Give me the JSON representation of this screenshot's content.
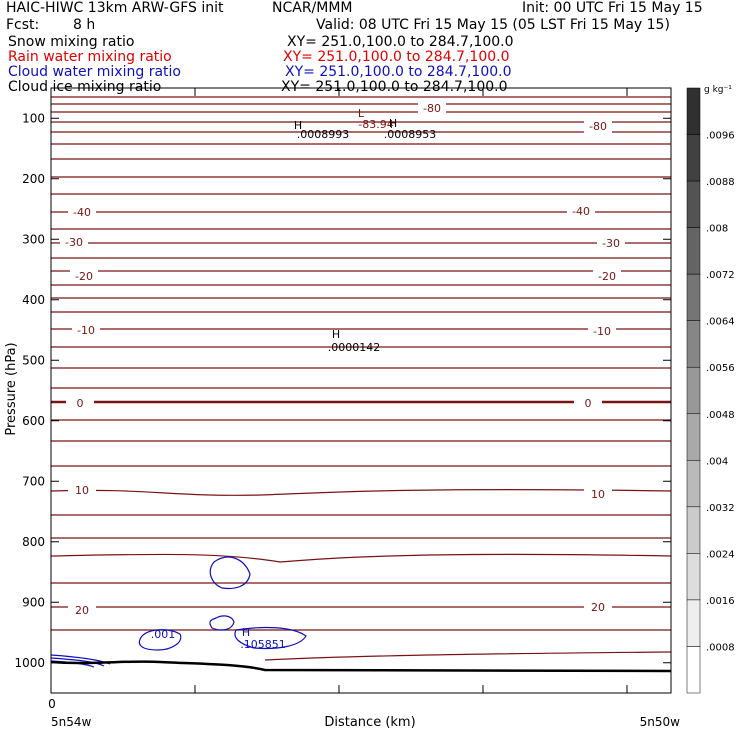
{
  "header": {
    "title": "HAIC-HIWC 13km ARW-GFS init",
    "org": "NCAR/MMM",
    "init": "Init: 00 UTC Fri 15 May 15",
    "fcst_label": "Fcst:",
    "fcst_value": "8 h",
    "valid": "Valid: 08 UTC Fri 15 May 15 (05 LST Fri 15 May 15)",
    "fields": [
      {
        "name": "Snow mixing ratio",
        "xy": "XY= 251.0,100.0 to 284.7,100.0",
        "color": "#000000"
      },
      {
        "name": "Rain water mixing ratio",
        "xy": "XY= 251.0,100.0 to 284.7,100.0",
        "color": "#e00000"
      },
      {
        "name": "Cloud water mixing ratio",
        "xy": "XY= 251.0,100.0 to 284.7,100.0",
        "color": "#1010c0"
      },
      {
        "name": "Cloud ice mixing ratio",
        "xy": "XY= 251.0,100.0 to 284.7,100.0",
        "color": "#000000"
      }
    ]
  },
  "chart_data": {
    "type": "contour",
    "xlabel": "Distance (km)",
    "ylabel": "Pressure (hPa)",
    "x_ticks": [
      "0"
    ],
    "x_end_labels": [
      "5n54w",
      "5n50w"
    ],
    "y_ticks": [
      100,
      200,
      300,
      400,
      500,
      600,
      700,
      800,
      900,
      1000
    ],
    "ylim": [
      1050,
      50
    ],
    "colorbar": {
      "unit": "g kg⁻¹",
      "labels": [
        ".0096",
        ".0088",
        ".008",
        ".0072",
        ".0064",
        ".0056",
        ".0048",
        ".004",
        ".0032",
        ".0024",
        ".0016",
        ".0008"
      ]
    },
    "temperature_labels": [
      "-80",
      "-80",
      "-40",
      "-40",
      "-30",
      "-30",
      "-20",
      "-20",
      "-10",
      "-10",
      "0",
      "0",
      "10",
      "10",
      "20",
      "20"
    ],
    "temperature_min_label": "-83.94",
    "extrema": [
      {
        "symbol": "L",
        "value": "-83.94"
      },
      {
        "symbol": "H",
        "value": ".0008993"
      },
      {
        "symbol": "H",
        "value": ".0008953"
      },
      {
        "symbol": "H",
        "value": ".0000142"
      },
      {
        "symbol": "H",
        "value": ".105851"
      }
    ],
    "cloud_water_labels": [
      ".001"
    ]
  }
}
